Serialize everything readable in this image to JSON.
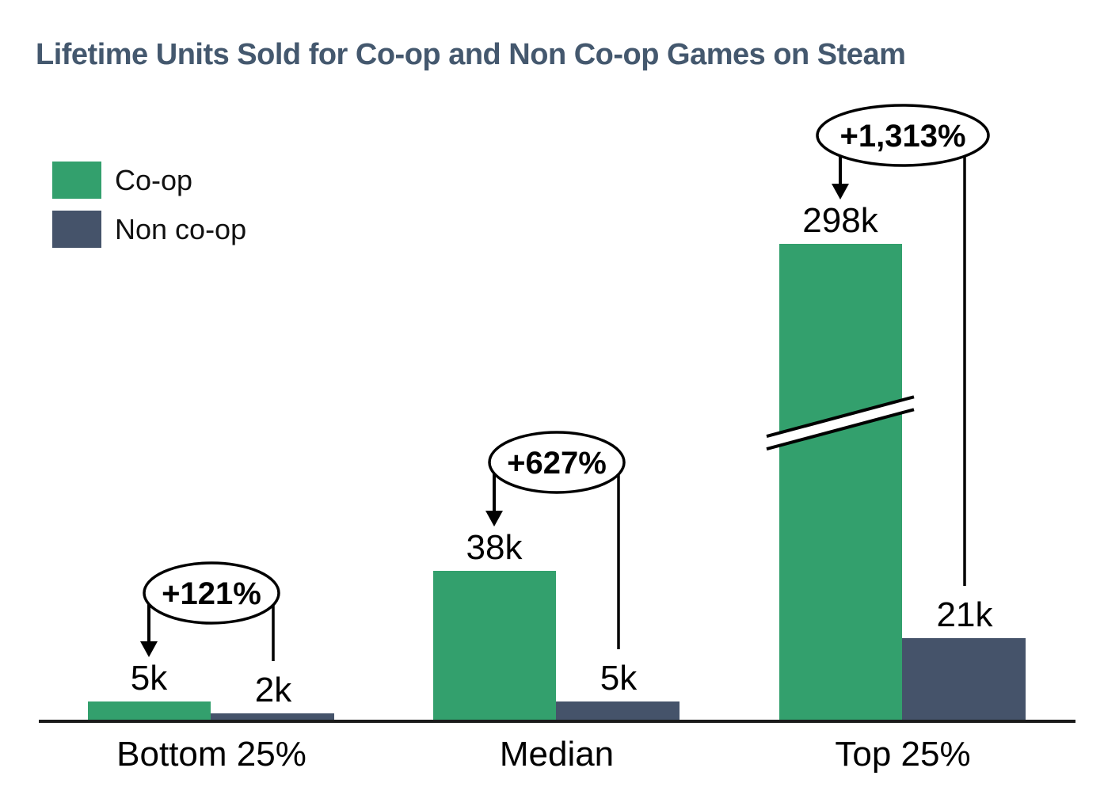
{
  "page": {
    "background": "#ffffff"
  },
  "chart_data": {
    "type": "bar",
    "title": "Lifetime Units Sold for Co-op and Non Co-op Games on Steam",
    "title_color": "#44586e",
    "categories": [
      "Bottom 25%",
      "Median",
      "Top 25%"
    ],
    "series": [
      {
        "name": "Co-op",
        "color": "#33a06d",
        "values_k": [
          5,
          38,
          298
        ],
        "value_labels": [
          "5k",
          "38k",
          "298k"
        ]
      },
      {
        "name": "Non co-op",
        "color": "#45536a",
        "values_k": [
          2,
          5,
          21
        ],
        "value_labels": [
          "2k",
          "5k",
          "21k"
        ]
      }
    ],
    "pct_increase_annotations": [
      "+121%",
      "+627%",
      "+1,313%"
    ],
    "axis_break": {
      "series": "Co-op",
      "category": "Top 25%"
    },
    "legend_position": "top-left",
    "axis_color": "#1a1a1a",
    "annotation_color": "#000000",
    "y_axis": "hidden",
    "xlabel": "",
    "ylabel": ""
  }
}
